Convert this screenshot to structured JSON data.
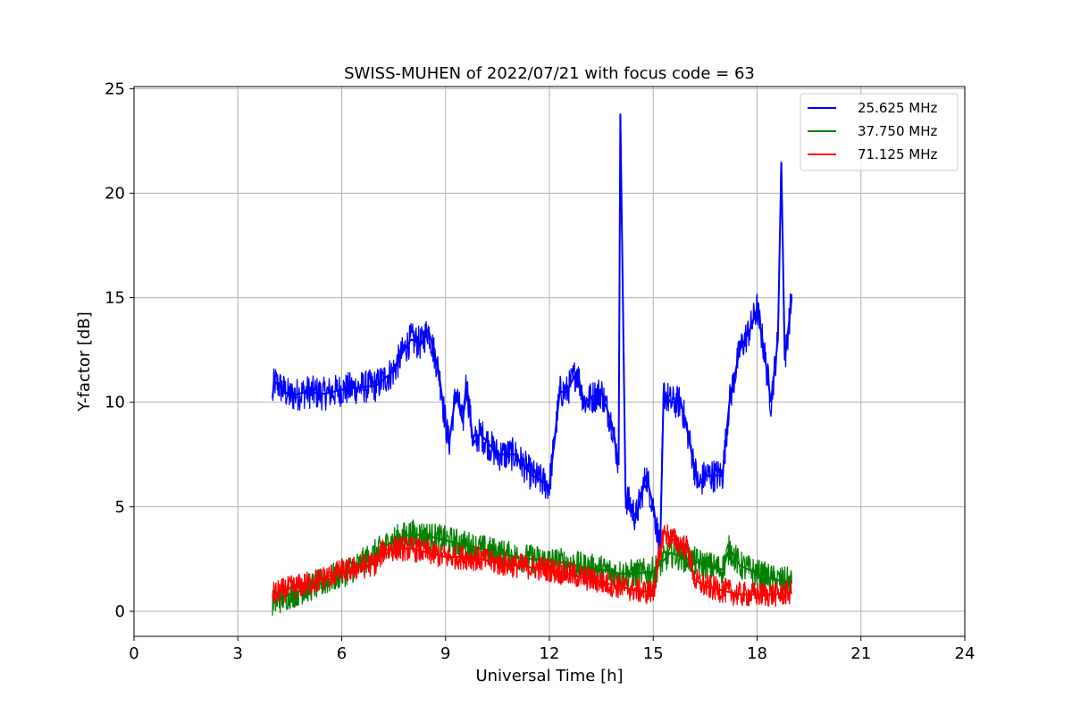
{
  "chart_data": {
    "type": "line",
    "title": "SWISS-MUHEN of 2022/07/21 with focus code = 63",
    "xlabel": "Universal Time [h]",
    "ylabel": "Y-factor [dB]",
    "xlim": [
      0,
      24
    ],
    "ylim": [
      -1.2,
      25.1
    ],
    "xticks": [
      0,
      3,
      6,
      9,
      12,
      15,
      18,
      21,
      24
    ],
    "yticks": [
      0,
      5,
      10,
      15,
      20,
      25
    ],
    "grid": true,
    "legend_position": "top-right",
    "series": [
      {
        "name": "25.625 MHz",
        "color": "#0000ff",
        "x": [
          4.0,
          4.05,
          4.5,
          5.0,
          5.5,
          6.0,
          6.5,
          7.0,
          7.5,
          7.8,
          8.0,
          8.3,
          8.5,
          8.8,
          9.0,
          9.1,
          9.3,
          9.5,
          9.6,
          9.8,
          10.0,
          10.5,
          11.0,
          11.5,
          12.0,
          12.2,
          12.3,
          12.5,
          12.8,
          13.0,
          13.5,
          13.8,
          14.0,
          14.05,
          14.2,
          14.5,
          14.8,
          15.0,
          15.2,
          15.3,
          15.5,
          15.8,
          16.0,
          16.3,
          16.5,
          17.0,
          17.2,
          17.5,
          17.8,
          18.0,
          18.2,
          18.4,
          18.6,
          18.7,
          18.8,
          18.9,
          19.0
        ],
        "y": [
          10.2,
          11.0,
          10.3,
          10.5,
          10.4,
          10.6,
          10.7,
          10.8,
          11.5,
          12.5,
          13.0,
          12.8,
          13.5,
          11.5,
          9.0,
          8.0,
          10.5,
          9.0,
          11.0,
          8.0,
          8.5,
          7.5,
          7.5,
          6.5,
          6.0,
          9.0,
          10.5,
          10.5,
          11.5,
          10.0,
          10.5,
          9.0,
          7.0,
          23.8,
          5.5,
          4.5,
          6.5,
          5.0,
          3.0,
          10.5,
          10.0,
          10.0,
          8.5,
          6.0,
          6.5,
          6.5,
          10.0,
          12.5,
          13.5,
          14.5,
          12.5,
          10.0,
          13.0,
          21.5,
          12.0,
          13.5,
          15.0
        ]
      },
      {
        "name": "37.750 MHz",
        "color": "#008000",
        "x": [
          4.0,
          4.5,
          5.0,
          5.5,
          6.0,
          6.5,
          7.0,
          7.5,
          8.0,
          8.5,
          9.0,
          9.5,
          10.0,
          10.5,
          11.0,
          11.5,
          12.0,
          12.5,
          13.0,
          13.5,
          14.0,
          14.5,
          15.0,
          15.5,
          16.0,
          16.5,
          17.0,
          17.2,
          17.5,
          18.0,
          18.5,
          19.0
        ],
        "y": [
          0.4,
          0.8,
          1.1,
          1.4,
          1.8,
          2.2,
          2.8,
          3.4,
          3.7,
          3.6,
          3.4,
          3.2,
          3.0,
          2.8,
          2.6,
          2.5,
          2.4,
          2.3,
          2.1,
          2.0,
          1.8,
          1.8,
          1.9,
          2.8,
          2.5,
          2.2,
          2.0,
          3.0,
          2.2,
          1.8,
          1.5,
          1.4
        ]
      },
      {
        "name": "71.125 MHz",
        "color": "#ff0000",
        "x": [
          4.0,
          4.5,
          5.0,
          5.5,
          6.0,
          6.5,
          7.0,
          7.2,
          7.5,
          8.0,
          8.5,
          9.0,
          9.5,
          10.0,
          10.5,
          11.0,
          11.5,
          12.0,
          12.5,
          13.0,
          13.5,
          14.0,
          14.5,
          15.0,
          15.3,
          15.5,
          15.8,
          16.0,
          16.2,
          16.5,
          17.0,
          17.5,
          18.0,
          18.5,
          19.0
        ],
        "y": [
          0.8,
          1.1,
          1.3,
          1.6,
          1.9,
          2.1,
          2.3,
          2.9,
          3.0,
          3.0,
          2.8,
          2.6,
          2.6,
          2.5,
          2.3,
          2.2,
          2.1,
          2.0,
          1.8,
          1.6,
          1.4,
          1.2,
          1.0,
          0.9,
          3.8,
          3.5,
          3.2,
          3.0,
          1.5,
          1.2,
          1.0,
          0.8,
          0.8,
          0.8,
          0.9
        ]
      }
    ]
  }
}
